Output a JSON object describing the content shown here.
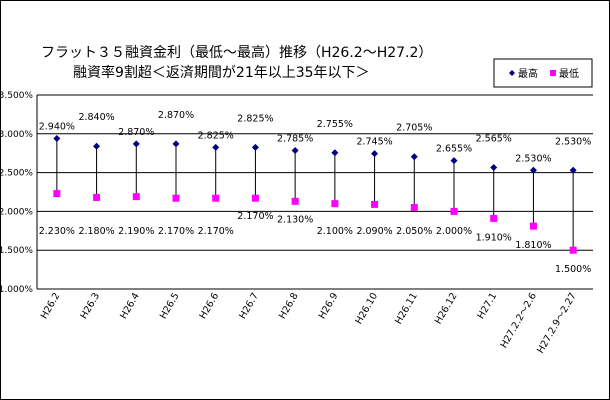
{
  "chart_data": {
    "type": "line",
    "title": "フラット３５融資金利（最低～最高）推移（H26.2～H27.2）",
    "subtitle": "融資率9割超＜返済期間が21年以上35年以下＞",
    "xlabel": "",
    "ylabel": "",
    "ylim": [
      1.0,
      3.5
    ],
    "ytick_labels": [
      "1.000%",
      "1.500%",
      "2.000%",
      "2.500%",
      "3.000%",
      "3.500%"
    ],
    "grid": true,
    "legend_position": "top-right",
    "categories": [
      "H26.2",
      "H26.3",
      "H26.4",
      "H26.5",
      "H26.6",
      "H26.7",
      "H26.8",
      "H26.9",
      "H26.10",
      "H26.11",
      "H26.12",
      "H27.1",
      "H27.2.2～2.6",
      "H27.2.9～2.27"
    ],
    "series": [
      {
        "name": "最高",
        "color": "#000080",
        "marker": "diamond",
        "values": [
          2.94,
          2.84,
          2.87,
          2.87,
          2.825,
          2.825,
          2.785,
          2.755,
          2.745,
          2.705,
          2.655,
          2.565,
          2.53,
          2.53
        ],
        "labels": [
          "2.940%",
          "2.840%",
          "2.870%",
          "2.870%",
          "2.825%",
          "2.825%",
          "2.785%",
          "2.755%",
          "2.745%",
          "2.705%",
          "2.655%",
          "2.565%",
          "2.530%",
          "2.530%"
        ]
      },
      {
        "name": "最低",
        "color": "#ff00ff",
        "marker": "square",
        "values": [
          2.23,
          2.18,
          2.19,
          2.17,
          2.17,
          2.17,
          2.13,
          2.1,
          2.09,
          2.05,
          2.0,
          1.91,
          1.81,
          1.5
        ],
        "labels": [
          "2.230%",
          "2.180%",
          "2.190%",
          "2.170%",
          "2.170%",
          "2.170%",
          "2.130%",
          "2.100%",
          "2.090%",
          "2.050%",
          "2.000%",
          "1.910%",
          "1.810%",
          "1.500%"
        ]
      }
    ]
  }
}
